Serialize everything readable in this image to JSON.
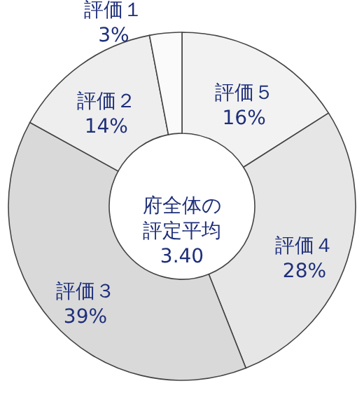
{
  "chart_data": {
    "type": "donut",
    "categories": [
      "評価５",
      "評価４",
      "評価３",
      "評価２",
      "評価１"
    ],
    "values": [
      16,
      28,
      39,
      14,
      3
    ],
    "value_labels": [
      "16%",
      "28%",
      "39%",
      "14%",
      "3%"
    ],
    "colors": [
      "#f2f2f2",
      "#e6e6e6",
      "#d9d9d9",
      "#eeeeee",
      "#fafafa"
    ],
    "annotations": [
      "府全体の評定平均",
      "3.40"
    ]
  }
}
